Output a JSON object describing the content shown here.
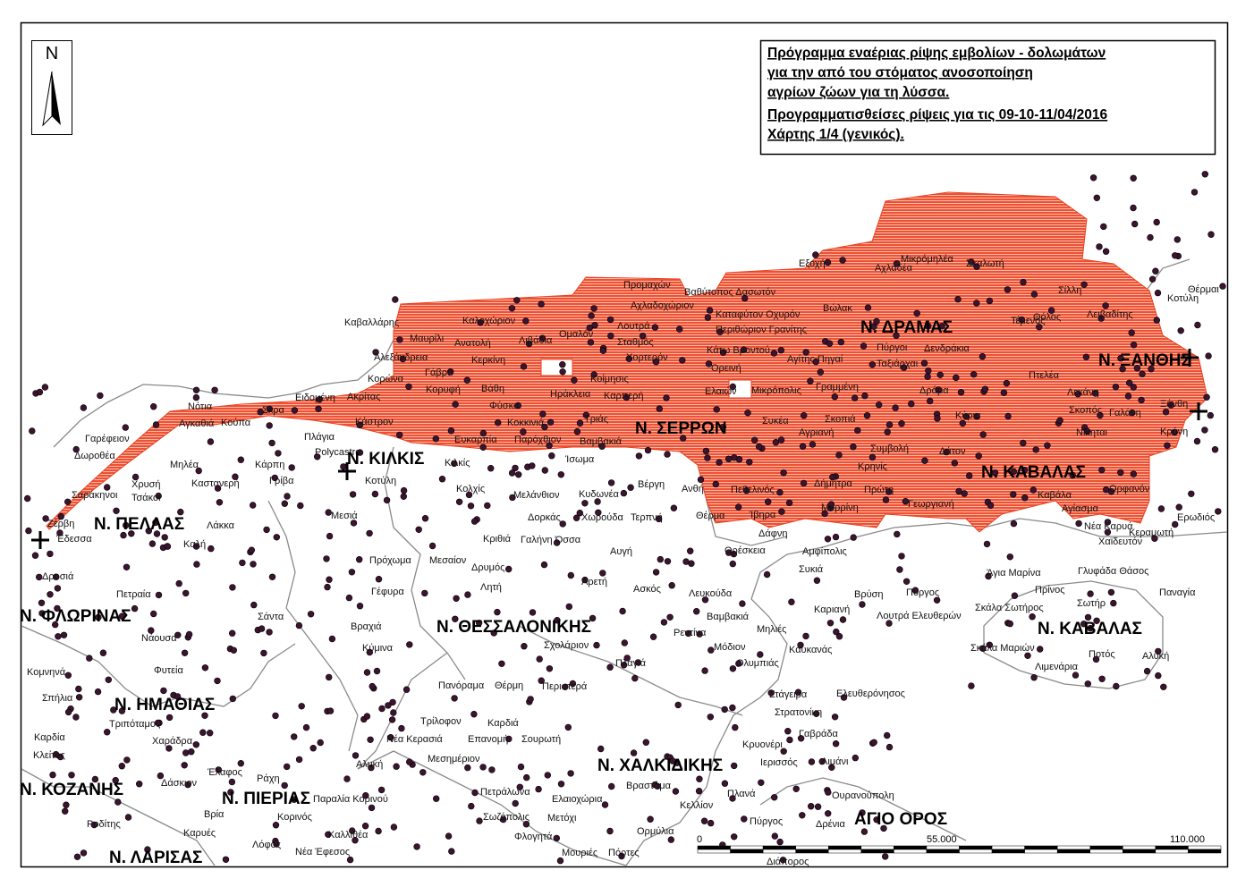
{
  "title": {
    "lines": [
      "Πρόγραμμα εναέριας ρίψης εμβολίων - δολωμάτων",
      "για την από του στόματος ανοσοποίηση",
      "αγρίων ζώων για τη λύσσα.",
      "Προγραμματισθείσες ρίψεις για τις 09-10-11/04/2016",
      "Χάρτης 1/4 (γενικός)."
    ]
  },
  "north": {
    "label": "N"
  },
  "regions": [
    "Ν. ΔΡΑΜΑΣ",
    "Ν. ΞΑΝΘΗΣ",
    "Ν. ΣΕΡΡΩΝ",
    "Ν. ΚΙΛΚΙΣ",
    "Ν. ΚΑΒΑΛΑΣ",
    "Ν. ΠΕΛΛΑΣ",
    "Ν. ΦΛΩΡΙΝΑΣ",
    "Ν. ΘΕΣΣΑΛΟΝΙΚΗΣ",
    "Ν. ΚΑΒΑΛΑΣ",
    "Ν. ΗΜΑΘΙΑΣ",
    "Ν. ΧΑΛΚΙΔΙΚΗΣ",
    "Ν. ΚΟΖΑΝΗΣ",
    "Ν. ΠΙΕΡΙΑΣ",
    "ΑΓΙΟ ΟΡΟΣ",
    "Ν. ΛΑΡΙΣΑΣ"
  ],
  "places": [
    "Εξοχή",
    "Αχλαδέα",
    "Μικρόμηλέα",
    "Σκαλωτή",
    "Προμαχών",
    "Βαθύτοπος Δασωτόν",
    "Αχλαδοχώριον",
    "Καβαλλάρης",
    "Καλοχώριον",
    "Λουτρά",
    "Καταφύτον Οχυρόν",
    "Περιθώριον Γρανίτης",
    "Βώλακ",
    "Σίλλη",
    "Κοτύλη",
    "Θέρμαι",
    "Λειβαδίτης",
    "Μαυρίλι",
    "Ανατολή",
    "Λιβάδια",
    "Ομαλόν",
    "Σταθμός",
    "Τέμενος",
    "Θόλος",
    "Πύργοι",
    "Δενδράκια",
    "Κάτω Βροντού",
    "Αλεξάνδρεια",
    "Κερκίνη",
    "Χορτερόν",
    "Ταξιάρχαι",
    "Αγίτης Πηγαί",
    "Κορώνα",
    "Γάβρα",
    "Κοίμησις",
    "Ορεινή",
    "Πτελέα",
    "Λεκάνη",
    "Ειδομένη",
    "Ακρίτας",
    "Κορυφή",
    "Βάθη",
    "Ηράκλεια",
    "Καρπερή",
    "Ελαιών",
    "Μικρόπολις",
    "Γραμμένη",
    "Δράμα",
    "Κύρια",
    "Νότια",
    "Σκρα",
    "Κούπα",
    "Αγκαθιά",
    "Κάστρον",
    "Φύσκα",
    "Κοκκινιά",
    "Τριάς",
    "Συκέα",
    "Σκοπιά",
    "Σκοπός",
    "Γαλάνη",
    "Ξάνθη",
    "Πλάγια",
    "Ευκαρπία",
    "Παρόχθιον",
    "Βαμβακιά",
    "Αγριανή",
    "Νίκηται",
    "Κρύνη",
    "Γαρέφειον",
    "Δωροθέα",
    "Polycastro",
    "Κιλκίς",
    "Ίσωμα",
    "Συμβολή",
    "Δάτον",
    "Κρηνίς",
    "Μηλέα",
    "Κάρπη",
    "Γρίβα",
    "Καστανερή",
    "Κοτύλη",
    "Κολχίς",
    "Μελάνθιον",
    "Κυδωνέα",
    "Βέργη",
    "Ανθή",
    "Πεθελινός",
    "Δήμητρα",
    "Πρώτη",
    "Καβάλα",
    "Ορφανόν",
    "Σαράκηνοι",
    "Χρυσή",
    "Τσάκοι",
    "Μεσιά",
    "Δορκάς",
    "Χωρούδα",
    "Τερπνή",
    "Θέρμα",
    "Ίβηρα",
    "Μυρρίνη",
    "Γεωργιανή",
    "Αγίασμα",
    "Νέα Καρυά",
    "Ζέρβη",
    "Λάκκα",
    "Ερωδιός",
    "Κριθιά",
    "Γαλήνη Όσσα",
    "Δάφνη",
    "Ορέσκεια",
    "Χαϊδευτόν",
    "Κεραμωτή",
    "Καλή",
    "Πρόχωμα",
    "Μεσαίον",
    "Δρυμός",
    "Αυγή",
    "Αμφίπολις",
    "Άγια Μαρίνα",
    "Γλυφάδα Θάσος",
    "Συκιά",
    "Δροσιά",
    "Πετραία",
    "Λουτρά Ελευθερών",
    "Σκάλα Σωτήρος",
    "Σωτήρ",
    "Πρίνος",
    "Παναγία",
    "Γέφυρα",
    "Λητή",
    "Αρετή",
    "Ασκός",
    "Λευκούδα",
    "Καριανή",
    "Βρύση",
    "Πύργος",
    "Σάντα",
    "Νάουσα",
    "Βραχιά",
    "Κύμινα",
    "Σχολάριον",
    "Βαμβακιά",
    "Μηλιές",
    "Καυκανάς",
    "Σκάλα Μαριών",
    "Λιμενάρια",
    "Ποτός",
    "Αλυκή",
    "Ρεντίνα",
    "Μόδιον",
    "Πλαγιά",
    "Ολυμπιάς",
    "Στάγειρα",
    "Ελευθερόνησος",
    "Στρατονίκη",
    "Γαβράδα",
    "Κρυονέρι",
    "Ιερισσός",
    "Λιμάνι",
    "Ουρανούπολη",
    "Πλανά",
    "Κελλίον",
    "Πύργος",
    "Δρένια",
    "Αλυκή",
    "Παραλία Κορινού",
    "Κορινός",
    "Καλλιθέα",
    "Νέα Έφεσος",
    "Πανόραμα",
    "Θέρμη",
    "Περιστερά",
    "Τρίλοφον",
    "Καρδιά",
    "Νέα Κερασιά",
    "Επανομή",
    "Σουρωτή",
    "Μεσημέριον",
    "Ελαιοχώρια",
    "Πετράλωνα",
    "Βραστάμα",
    "Σωζόπολις",
    "Μετόχι",
    "Φλογητά",
    "Ορμύλια",
    "Πόρτες",
    "Μουριές",
    "Διάπορος",
    "Τριπόταμος",
    "Χαράδρα",
    "Έλαφος",
    "Δάσκιον",
    "Ράχη",
    "Βρία",
    "Καρυές",
    "Λόφος",
    "Ροδίτης",
    "Κλείτος",
    "Καρδία",
    "Σπήλια",
    "Κομνηνά",
    "Φυτεία",
    "Έδεσσα"
  ],
  "scale": {
    "labels": [
      "0",
      "55.000",
      "110.000",
      "Meters"
    ]
  }
}
